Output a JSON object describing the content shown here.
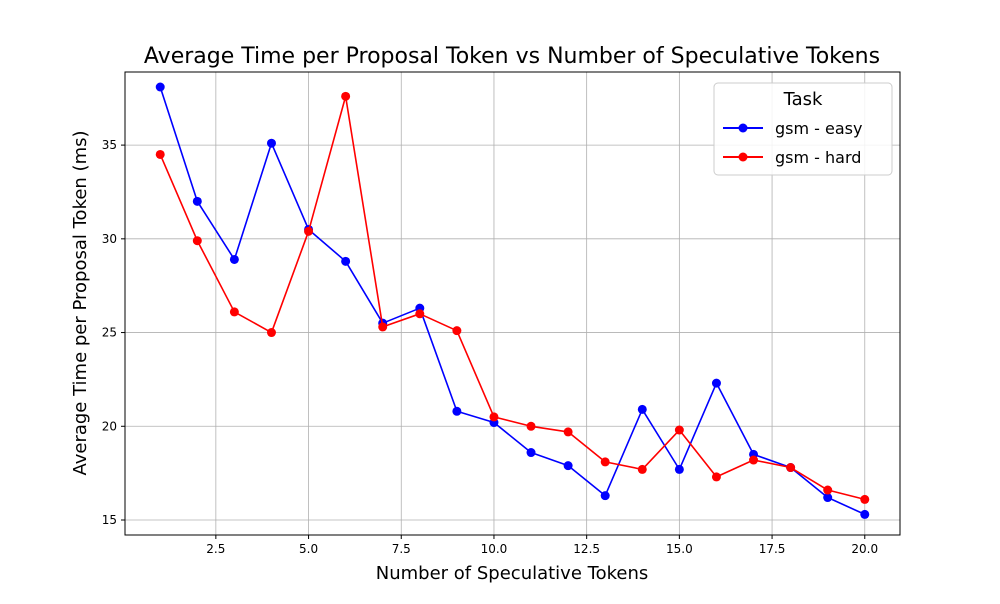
{
  "chart_data": {
    "type": "line",
    "title": "Average Time per Proposal Token vs Number of Speculative Tokens",
    "xlabel": "Number of Speculative Tokens",
    "ylabel": "Average Time per Proposal Token (ms)",
    "xlim": [
      0.05,
      20.95
    ],
    "ylim": [
      14.2,
      38.9
    ],
    "xticks": [
      2.5,
      5.0,
      7.5,
      10.0,
      12.5,
      15.0,
      17.5,
      20.0
    ],
    "xtick_labels": [
      "2.5",
      "5.0",
      "7.5",
      "10.0",
      "12.5",
      "15.0",
      "17.5",
      "20.0"
    ],
    "yticks": [
      15,
      20,
      25,
      30,
      35
    ],
    "ytick_labels": [
      "15",
      "20",
      "25",
      "30",
      "35"
    ],
    "grid": true,
    "legend": {
      "title": "Task",
      "placement": "top-right"
    },
    "x": [
      1,
      2,
      3,
      4,
      5,
      6,
      7,
      8,
      9,
      10,
      11,
      12,
      13,
      14,
      15,
      16,
      17,
      18,
      19,
      20
    ],
    "series": [
      {
        "name": "gsm - easy",
        "color": "#0000ff",
        "marker": "circle",
        "values": [
          38.1,
          32.0,
          28.9,
          35.1,
          30.5,
          28.8,
          25.5,
          26.3,
          20.8,
          20.2,
          18.6,
          17.9,
          16.3,
          20.9,
          17.7,
          22.3,
          18.5,
          17.8,
          16.2,
          15.3
        ]
      },
      {
        "name": "gsm - hard",
        "color": "#ff0000",
        "marker": "circle",
        "values": [
          34.5,
          29.9,
          26.1,
          25.0,
          30.4,
          37.6,
          25.3,
          26.0,
          25.1,
          20.5,
          20.0,
          19.7,
          18.1,
          17.7,
          19.8,
          17.3,
          18.2,
          17.8,
          16.6,
          16.1
        ]
      }
    ]
  }
}
